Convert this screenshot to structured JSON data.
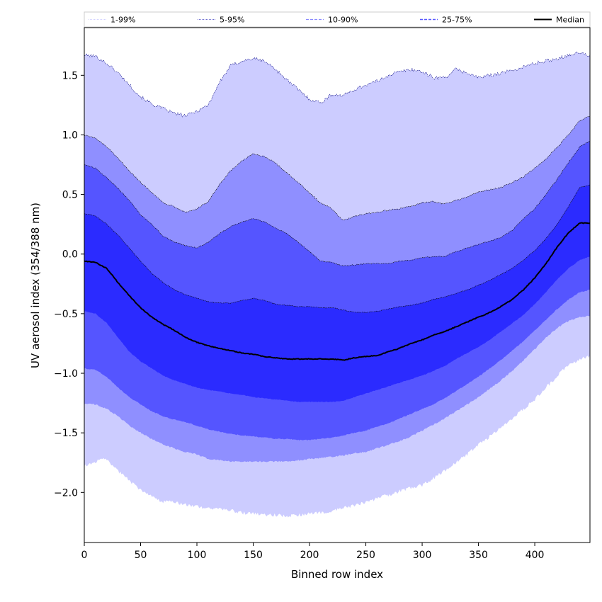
{
  "chart_data": {
    "type": "area",
    "title": "",
    "xlabel": "Binned row index",
    "ylabel": "UV aerosol index (354/388 nm)",
    "xlim": [
      0,
      449
    ],
    "ylim": [
      -2.42,
      1.9
    ],
    "x_ticks": [
      0,
      50,
      100,
      150,
      200,
      250,
      300,
      350,
      400
    ],
    "y_ticks": [
      -2.0,
      -1.5,
      -1.0,
      -0.5,
      0.0,
      0.5,
      1.0,
      1.5
    ],
    "y_tick_labels": [
      "−2.0",
      "−1.5",
      "−1.0",
      "−0.5",
      "0.0",
      "0.5",
      "1.0",
      "1.5"
    ],
    "x_knots": [
      0,
      10,
      20,
      30,
      40,
      50,
      60,
      70,
      80,
      90,
      100,
      110,
      120,
      130,
      140,
      150,
      160,
      170,
      180,
      190,
      200,
      210,
      220,
      230,
      240,
      250,
      260,
      270,
      280,
      290,
      300,
      310,
      320,
      330,
      340,
      350,
      360,
      370,
      380,
      390,
      400,
      410,
      420,
      430,
      440,
      449
    ],
    "bands": [
      {
        "name": "1-99%",
        "color": "#ccccff",
        "line_color": "#b3b3ff",
        "line_style": "dotted",
        "upper": [
          1.67,
          1.66,
          1.6,
          1.52,
          1.42,
          1.32,
          1.26,
          1.22,
          1.18,
          1.16,
          1.2,
          1.25,
          1.44,
          1.58,
          1.62,
          1.64,
          1.62,
          1.55,
          1.46,
          1.38,
          1.3,
          1.27,
          1.34,
          1.33,
          1.38,
          1.42,
          1.45,
          1.5,
          1.53,
          1.55,
          1.53,
          1.48,
          1.48,
          1.55,
          1.52,
          1.48,
          1.5,
          1.52,
          1.54,
          1.57,
          1.6,
          1.62,
          1.64,
          1.67,
          1.69,
          1.66
        ],
        "lower": [
          -1.78,
          -1.74,
          -1.72,
          -1.82,
          -1.9,
          -1.98,
          -2.04,
          -2.08,
          -2.08,
          -2.1,
          -2.12,
          -2.13,
          -2.14,
          -2.15,
          -2.17,
          -2.18,
          -2.19,
          -2.19,
          -2.2,
          -2.19,
          -2.18,
          -2.17,
          -2.16,
          -2.13,
          -2.11,
          -2.08,
          -2.05,
          -2.02,
          -1.99,
          -1.96,
          -1.94,
          -1.88,
          -1.82,
          -1.75,
          -1.68,
          -1.6,
          -1.53,
          -1.45,
          -1.38,
          -1.3,
          -1.22,
          -1.12,
          -1.02,
          -0.93,
          -0.88,
          -0.86
        ]
      },
      {
        "name": "5-95%",
        "color": "#8f8fff",
        "line_color": "#4040c0",
        "line_style": "dotted",
        "upper": [
          1.0,
          0.97,
          0.9,
          0.8,
          0.7,
          0.6,
          0.52,
          0.43,
          0.4,
          0.35,
          0.38,
          0.44,
          0.58,
          0.7,
          0.78,
          0.84,
          0.82,
          0.76,
          0.68,
          0.6,
          0.51,
          0.43,
          0.38,
          0.28,
          0.32,
          0.34,
          0.35,
          0.37,
          0.38,
          0.4,
          0.43,
          0.44,
          0.42,
          0.45,
          0.48,
          0.52,
          0.54,
          0.56,
          0.6,
          0.65,
          0.72,
          0.8,
          0.9,
          1.0,
          1.12,
          1.16
        ]
      },
      {
        "name": "10-90%",
        "color": "#5555ff",
        "line_color": "#8888ff",
        "line_style": "dashed",
        "upper": [
          0.75,
          0.72,
          0.64,
          0.55,
          0.45,
          0.33,
          0.25,
          0.15,
          0.1,
          0.07,
          0.05,
          0.1,
          0.17,
          0.23,
          0.27,
          0.3,
          0.27,
          0.22,
          0.17,
          0.1,
          0.02,
          -0.06,
          -0.07,
          -0.1,
          -0.09,
          -0.08,
          -0.08,
          -0.08,
          -0.06,
          -0.05,
          -0.03,
          -0.02,
          -0.02,
          0.02,
          0.05,
          0.08,
          0.11,
          0.14,
          0.2,
          0.3,
          0.38,
          0.5,
          0.63,
          0.77,
          0.9,
          0.95
        ]
      },
      {
        "name": "25-75%",
        "color": "#2b2bff",
        "line_color": "#7070ff",
        "line_style": "dashed",
        "upper": [
          0.34,
          0.32,
          0.25,
          0.16,
          0.05,
          -0.06,
          -0.16,
          -0.24,
          -0.3,
          -0.34,
          -0.37,
          -0.4,
          -0.41,
          -0.41,
          -0.39,
          -0.37,
          -0.39,
          -0.42,
          -0.43,
          -0.44,
          -0.44,
          -0.45,
          -0.45,
          -0.47,
          -0.49,
          -0.49,
          -0.48,
          -0.46,
          -0.44,
          -0.43,
          -0.41,
          -0.38,
          -0.36,
          -0.33,
          -0.3,
          -0.26,
          -0.22,
          -0.17,
          -0.12,
          -0.05,
          0.03,
          0.13,
          0.25,
          0.4,
          0.56,
          0.58
        ]
      }
    ],
    "band_lowers": {
      "5-95%": [
        -1.26,
        -1.26,
        -1.3,
        -1.36,
        -1.44,
        -1.5,
        -1.55,
        -1.6,
        -1.63,
        -1.66,
        -1.68,
        -1.72,
        -1.73,
        -1.74,
        -1.74,
        -1.74,
        -1.74,
        -1.74,
        -1.74,
        -1.73,
        -1.72,
        -1.71,
        -1.7,
        -1.69,
        -1.67,
        -1.66,
        -1.63,
        -1.6,
        -1.57,
        -1.53,
        -1.48,
        -1.43,
        -1.38,
        -1.32,
        -1.26,
        -1.2,
        -1.13,
        -1.06,
        -0.98,
        -0.89,
        -0.8,
        -0.7,
        -0.62,
        -0.56,
        -0.53,
        -0.52
      ],
      "10-90%": [
        -0.96,
        -0.97,
        -1.03,
        -1.12,
        -1.2,
        -1.26,
        -1.32,
        -1.36,
        -1.39,
        -1.41,
        -1.44,
        -1.47,
        -1.49,
        -1.51,
        -1.52,
        -1.53,
        -1.54,
        -1.55,
        -1.55,
        -1.56,
        -1.56,
        -1.55,
        -1.54,
        -1.52,
        -1.5,
        -1.48,
        -1.45,
        -1.42,
        -1.38,
        -1.34,
        -1.3,
        -1.26,
        -1.21,
        -1.15,
        -1.09,
        -1.03,
        -0.96,
        -0.89,
        -0.81,
        -0.73,
        -0.64,
        -0.55,
        -0.46,
        -0.38,
        -0.32,
        -0.3
      ],
      "25-75%": [
        -0.48,
        -0.5,
        -0.58,
        -0.7,
        -0.82,
        -0.9,
        -0.96,
        -1.02,
        -1.06,
        -1.09,
        -1.12,
        -1.14,
        -1.15,
        -1.17,
        -1.18,
        -1.2,
        -1.21,
        -1.22,
        -1.23,
        -1.24,
        -1.24,
        -1.24,
        -1.24,
        -1.23,
        -1.2,
        -1.17,
        -1.14,
        -1.11,
        -1.08,
        -1.05,
        -1.02,
        -0.98,
        -0.94,
        -0.88,
        -0.83,
        -0.78,
        -0.72,
        -0.65,
        -0.58,
        -0.51,
        -0.42,
        -0.32,
        -0.21,
        -0.12,
        -0.05,
        -0.02
      ]
    },
    "median": {
      "name": "Median",
      "color": "#000000",
      "values": [
        -0.06,
        -0.07,
        -0.12,
        -0.24,
        -0.35,
        -0.45,
        -0.53,
        -0.59,
        -0.64,
        -0.7,
        -0.74,
        -0.77,
        -0.79,
        -0.81,
        -0.83,
        -0.84,
        -0.86,
        -0.87,
        -0.88,
        -0.88,
        -0.88,
        -0.88,
        -0.88,
        -0.89,
        -0.87,
        -0.86,
        -0.85,
        -0.82,
        -0.79,
        -0.75,
        -0.72,
        -0.68,
        -0.65,
        -0.61,
        -0.57,
        -0.53,
        -0.49,
        -0.44,
        -0.38,
        -0.3,
        -0.2,
        -0.08,
        0.06,
        0.18,
        0.26,
        0.26
      ]
    },
    "legend": {
      "placement": "top, above plot area, spanning full width",
      "entries": [
        "1-99%",
        "5-95%",
        "10-90%",
        "25-75%",
        "Median"
      ]
    },
    "grid": false
  }
}
